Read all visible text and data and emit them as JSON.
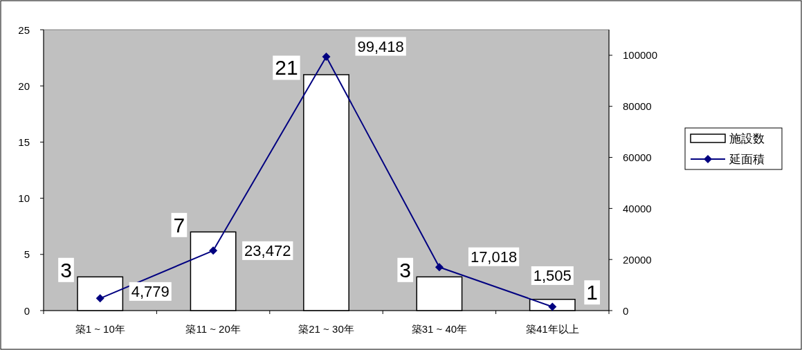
{
  "chart_data": {
    "type": "bar",
    "categories": [
      "築1 ~ 10年",
      "築11 ~ 20年",
      "築21 ~ 30年",
      "築31 ~ 40年",
      "築41年以上"
    ],
    "series": [
      {
        "name": "施設数",
        "color": "#ffffff",
        "values": [
          3,
          7,
          21,
          3,
          1
        ],
        "value_labels": [
          "3",
          "7",
          "21",
          "3",
          "1"
        ]
      },
      {
        "name": "延面積",
        "type": "line",
        "axis": "y2",
        "color": "#000080",
        "values": [
          4779,
          23472,
          99418,
          17018,
          1505
        ],
        "value_labels": [
          "4,779",
          "23,472",
          "99,418",
          "17,018",
          "1,505"
        ]
      }
    ],
    "ylim": [
      0,
      25
    ],
    "yticks": [
      0,
      5,
      10,
      15,
      20,
      25
    ],
    "y2lim": [
      0,
      110000
    ],
    "y2ticks": [
      0,
      20000,
      40000,
      60000,
      80000,
      100000
    ],
    "marker": "diamond",
    "legend": "right",
    "grid": false
  }
}
